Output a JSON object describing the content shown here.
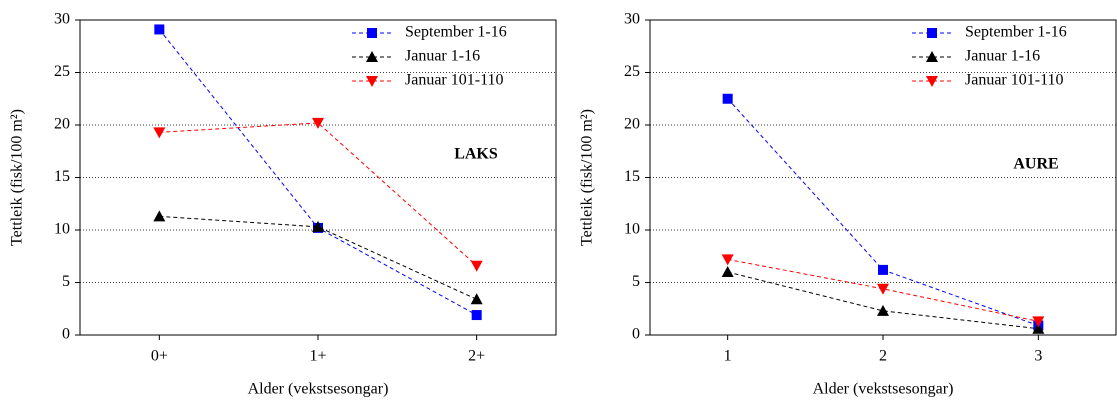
{
  "chart_data": [
    {
      "type": "line",
      "annotation": "LAKS",
      "xlabel": "Alder (vekstsesongar)",
      "ylabel": "Tettleik (fisk/100 m²)",
      "categories": [
        "0+",
        "1+",
        "2+"
      ],
      "series": [
        {
          "name": "September 1-16",
          "color": "#0000ff",
          "marker": "square",
          "values": [
            29.1,
            10.2,
            1.9
          ]
        },
        {
          "name": "Januar 1-16",
          "color": "#000000",
          "marker": "triangle-up",
          "values": [
            11.3,
            10.3,
            3.4
          ]
        },
        {
          "name": "Januar 101-110",
          "color": "#ff0000",
          "marker": "triangle-down",
          "values": [
            19.3,
            20.2,
            6.6
          ]
        }
      ],
      "ylim": [
        0,
        30
      ],
      "yticks": [
        0,
        5,
        10,
        15,
        20,
        25,
        30
      ],
      "grid": true,
      "legend": "upper right"
    },
    {
      "type": "line",
      "annotation": "AURE",
      "xlabel": "Alder (vekstsesongar)",
      "ylabel": "Tettleik (fisk/100 m²)",
      "categories": [
        "1",
        "2",
        "3"
      ],
      "series": [
        {
          "name": "September 1-16",
          "color": "#0000ff",
          "marker": "square",
          "values": [
            22.5,
            6.2,
            0.9
          ]
        },
        {
          "name": "Januar 1-16",
          "color": "#000000",
          "marker": "triangle-up",
          "values": [
            6.0,
            2.3,
            0.6
          ]
        },
        {
          "name": "Januar 101-110",
          "color": "#ff0000",
          "marker": "triangle-down",
          "values": [
            7.2,
            4.4,
            1.3
          ]
        }
      ],
      "ylim": [
        0,
        30
      ],
      "yticks": [
        0,
        5,
        10,
        15,
        20,
        25,
        30
      ],
      "grid": true,
      "legend": "upper right"
    }
  ]
}
